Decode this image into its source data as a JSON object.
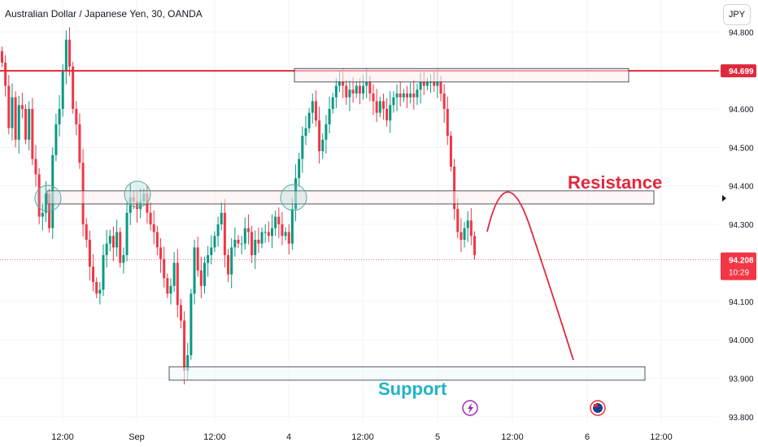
{
  "header": {
    "title": "Australian Dollar / Japanese Yen, 30, OANDA",
    "currency": "JPY"
  },
  "price_axis": {
    "ticks": [
      "94.800",
      "94.600",
      "94.500",
      "94.400",
      "94.300",
      "94.100",
      "94.000",
      "93.900",
      "93.800"
    ]
  },
  "time_axis": {
    "ticks": [
      "12:00",
      "Sep",
      "12:00",
      "4",
      "12:00",
      "5",
      "12:00",
      "6",
      "12:00"
    ]
  },
  "price_tags": {
    "resistance_level": "94.699",
    "last_price": "94.208",
    "countdown": "10:29"
  },
  "annotations": {
    "resistance": "Resistance",
    "support": "Support"
  },
  "colors": {
    "up": "#089981",
    "down": "#f23645",
    "level_line": "#e0283c",
    "resistance_text": "#e0283c",
    "support_text": "#1fb5c4",
    "zone_fill": "#fdecee",
    "circle": "#5aa9a0",
    "event_icon": "#9c27b0"
  },
  "icons": {
    "event_a": "lightning-icon",
    "event_b": "australia-flag-icon"
  },
  "chart_data": {
    "type": "candlestick",
    "title": "Australian Dollar / Japanese Yen, 30, OANDA",
    "xlabel": "",
    "ylabel": "",
    "ylim": [
      93.78,
      94.83
    ],
    "x_ticks": [
      "12:00",
      "Sep",
      "12:00",
      "4",
      "12:00",
      "5",
      "12:00",
      "6",
      "12:00"
    ],
    "y_ticks": [
      94.8,
      94.6,
      94.5,
      94.4,
      94.3,
      94.1,
      94.0,
      93.9,
      93.8
    ],
    "horizontal_line": 94.699,
    "last_price": 94.208,
    "zones": [
      {
        "label": "",
        "low": 94.67,
        "high": 94.705
      },
      {
        "label": "Resistance",
        "low": 94.353,
        "high": 94.387
      },
      {
        "label": "Support",
        "low": 93.895,
        "high": 93.93
      }
    ],
    "projection": "rise to 94.38 then fall toward 93.95",
    "closes": [
      94.72,
      94.66,
      94.55,
      94.63,
      94.52,
      94.61,
      94.6,
      94.52,
      94.6,
      94.47,
      94.43,
      94.32,
      94.33,
      94.38,
      94.29,
      94.48,
      94.56,
      94.6,
      94.7,
      94.78,
      94.71,
      94.6,
      94.56,
      94.46,
      94.3,
      94.26,
      94.19,
      94.15,
      94.12,
      94.13,
      94.22,
      94.25,
      94.27,
      94.24,
      94.28,
      94.2,
      94.22,
      94.33,
      94.37,
      94.36,
      94.34,
      94.36,
      94.38,
      94.33,
      94.3,
      94.28,
      94.24,
      94.21,
      94.16,
      94.12,
      94.14,
      94.2,
      94.09,
      94.05,
      93.92,
      93.96,
      94.12,
      94.24,
      94.18,
      94.14,
      94.2,
      94.22,
      94.24,
      94.27,
      94.3,
      94.33,
      94.22,
      94.17,
      94.24,
      94.26,
      94.25,
      94.25,
      94.29,
      94.28,
      94.22,
      94.26,
      94.25,
      94.28,
      94.28,
      94.27,
      94.29,
      94.32,
      94.3,
      94.27,
      94.28,
      94.25,
      94.34,
      94.42,
      94.47,
      94.53,
      94.55,
      94.59,
      94.62,
      94.57,
      94.49,
      94.52,
      94.56,
      94.6,
      94.63,
      94.66,
      94.67,
      94.66,
      94.63,
      94.65,
      94.64,
      94.66,
      94.64,
      94.66,
      94.67,
      94.64,
      94.62,
      94.59,
      94.62,
      94.6,
      94.57,
      94.61,
      94.63,
      94.64,
      94.63,
      94.64,
      94.63,
      94.64,
      94.63,
      94.65,
      94.67,
      94.66,
      94.67,
      94.67,
      94.66,
      94.67,
      94.64,
      94.6,
      94.53,
      94.45,
      94.34,
      94.28,
      94.26,
      94.29,
      94.31,
      94.27,
      94.22
    ]
  }
}
